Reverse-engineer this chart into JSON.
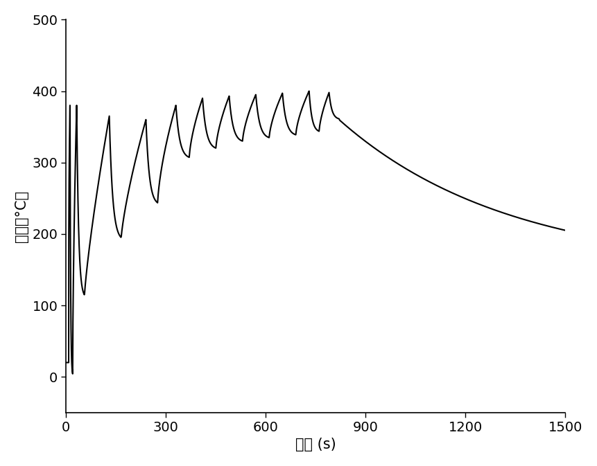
{
  "xlabel": "时间 (s)",
  "ylabel": "温度（°C）",
  "xlim": [
    0,
    1500
  ],
  "ylim": [
    -50,
    500
  ],
  "xticks": [
    0,
    300,
    600,
    900,
    1200,
    1500
  ],
  "yticks": [
    0,
    100,
    200,
    300,
    400,
    500
  ],
  "line_color": "#000000",
  "line_width": 1.5,
  "background_color": "#ffffff",
  "xlabel_fontsize": 15,
  "ylabel_fontsize": 15,
  "tick_fontsize": 14
}
